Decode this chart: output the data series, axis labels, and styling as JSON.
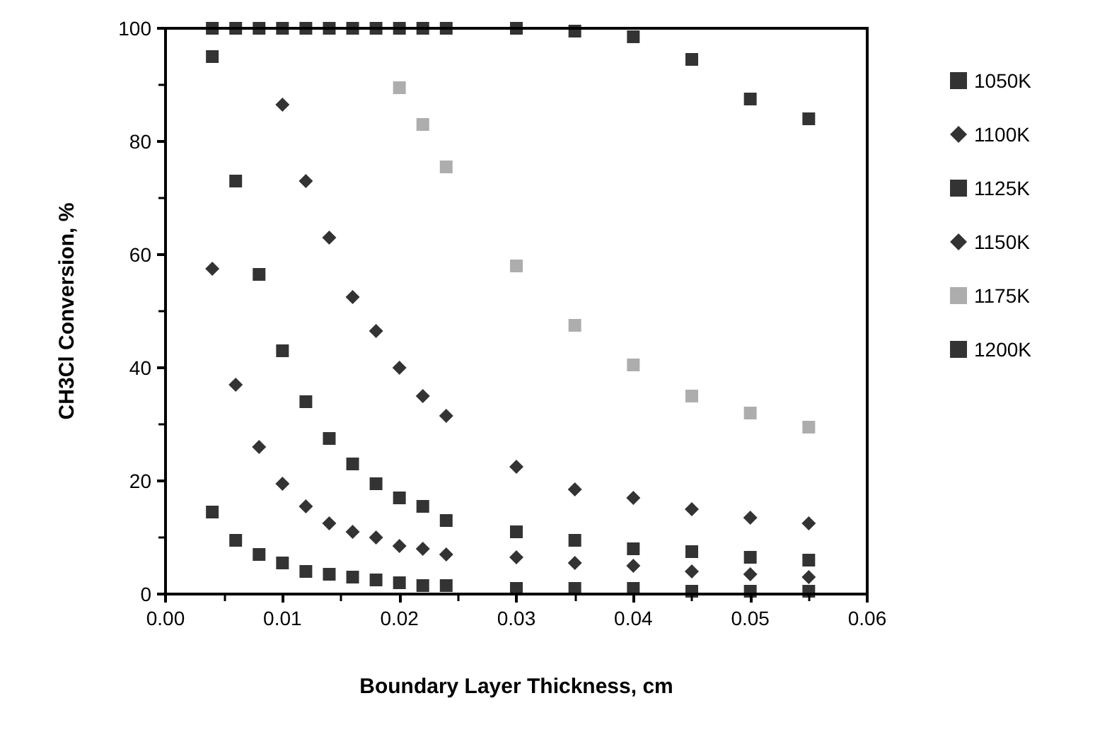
{
  "chart_data": {
    "type": "scatter",
    "xlabel": "Boundary Layer Thickness, cm",
    "ylabel": "CH3Cl Conversion, %",
    "xlim": [
      0,
      0.06
    ],
    "xticks": [
      {
        "value": 0,
        "label": "0.00"
      },
      {
        "value": 0.01,
        "label": "0.01"
      },
      {
        "value": 0.02,
        "label": "0.02"
      },
      {
        "value": 0.03,
        "label": "0.03"
      },
      {
        "value": 0.04,
        "label": "0.04"
      },
      {
        "value": 0.05,
        "label": "0.05"
      },
      {
        "value": 0.06,
        "label": "0.06"
      }
    ],
    "ylim": [
      0,
      100
    ],
    "yticks": [
      0,
      20,
      40,
      60,
      80,
      100
    ],
    "grid": false,
    "legend": "right",
    "series": [
      {
        "name": "1050K",
        "color": "#000000",
        "marker": "square",
        "x": [
          0.004,
          0.006,
          0.008,
          0.01,
          0.012,
          0.014,
          0.016,
          0.018,
          0.02,
          0.022,
          0.024,
          0.03,
          0.035,
          0.04,
          0.045,
          0.05,
          0.055
        ],
        "values": [
          14.5,
          9.5,
          7,
          5.5,
          4,
          3.5,
          3,
          2.5,
          2,
          1.5,
          1.5,
          1,
          1,
          1,
          0.5,
          0.5,
          0.5
        ]
      },
      {
        "name": "1100K",
        "color": "#000000",
        "marker": "diamond",
        "x": [
          0.004,
          0.006,
          0.008,
          0.01,
          0.012,
          0.014,
          0.016,
          0.018,
          0.02,
          0.022,
          0.024,
          0.03,
          0.035,
          0.04,
          0.045,
          0.05,
          0.055
        ],
        "values": [
          57.5,
          37,
          26,
          19.5,
          15.5,
          12.5,
          11,
          10,
          8.5,
          8,
          7,
          6.5,
          5.5,
          5,
          4,
          3.5,
          3
        ]
      },
      {
        "name": "1125K",
        "color": "#000000",
        "marker": "square",
        "x": [
          0.004,
          0.006,
          0.008,
          0.01,
          0.012,
          0.014,
          0.016,
          0.018,
          0.02,
          0.022,
          0.024,
          0.03,
          0.035,
          0.04,
          0.045,
          0.05,
          0.055
        ],
        "values": [
          95,
          73,
          56.5,
          43,
          34,
          27.5,
          23,
          19.5,
          17,
          15.5,
          13,
          11,
          9.5,
          8,
          7.5,
          6.5,
          6
        ]
      },
      {
        "name": "1150K",
        "color": "#000000",
        "marker": "diamond",
        "x": [
          0.01,
          0.012,
          0.014,
          0.016,
          0.018,
          0.02,
          0.022,
          0.024,
          0.03,
          0.035,
          0.04,
          0.045,
          0.05,
          0.055
        ],
        "values": [
          86.5,
          73,
          63,
          52.5,
          46.5,
          40,
          35,
          31.5,
          22.5,
          18.5,
          17,
          15,
          13.5,
          12.5
        ]
      },
      {
        "name": "1175K",
        "color": "#999999",
        "marker": "square",
        "x": [
          0.02,
          0.022,
          0.024,
          0.03,
          0.035,
          0.04,
          0.045,
          0.05,
          0.055
        ],
        "values": [
          89.5,
          83,
          75.5,
          58,
          47.5,
          40.5,
          35,
          32,
          29.5
        ]
      },
      {
        "name": "1200K",
        "color": "#000000",
        "marker": "square",
        "x": [
          0.004,
          0.006,
          0.008,
          0.01,
          0.012,
          0.014,
          0.016,
          0.018,
          0.02,
          0.022,
          0.024,
          0.03,
          0.035,
          0.04,
          0.045,
          0.05,
          0.055
        ],
        "values": [
          100,
          100,
          100,
          100,
          100,
          100,
          100,
          100,
          100,
          100,
          100,
          100,
          99.5,
          98.5,
          94.5,
          87.5,
          84
        ]
      }
    ]
  }
}
